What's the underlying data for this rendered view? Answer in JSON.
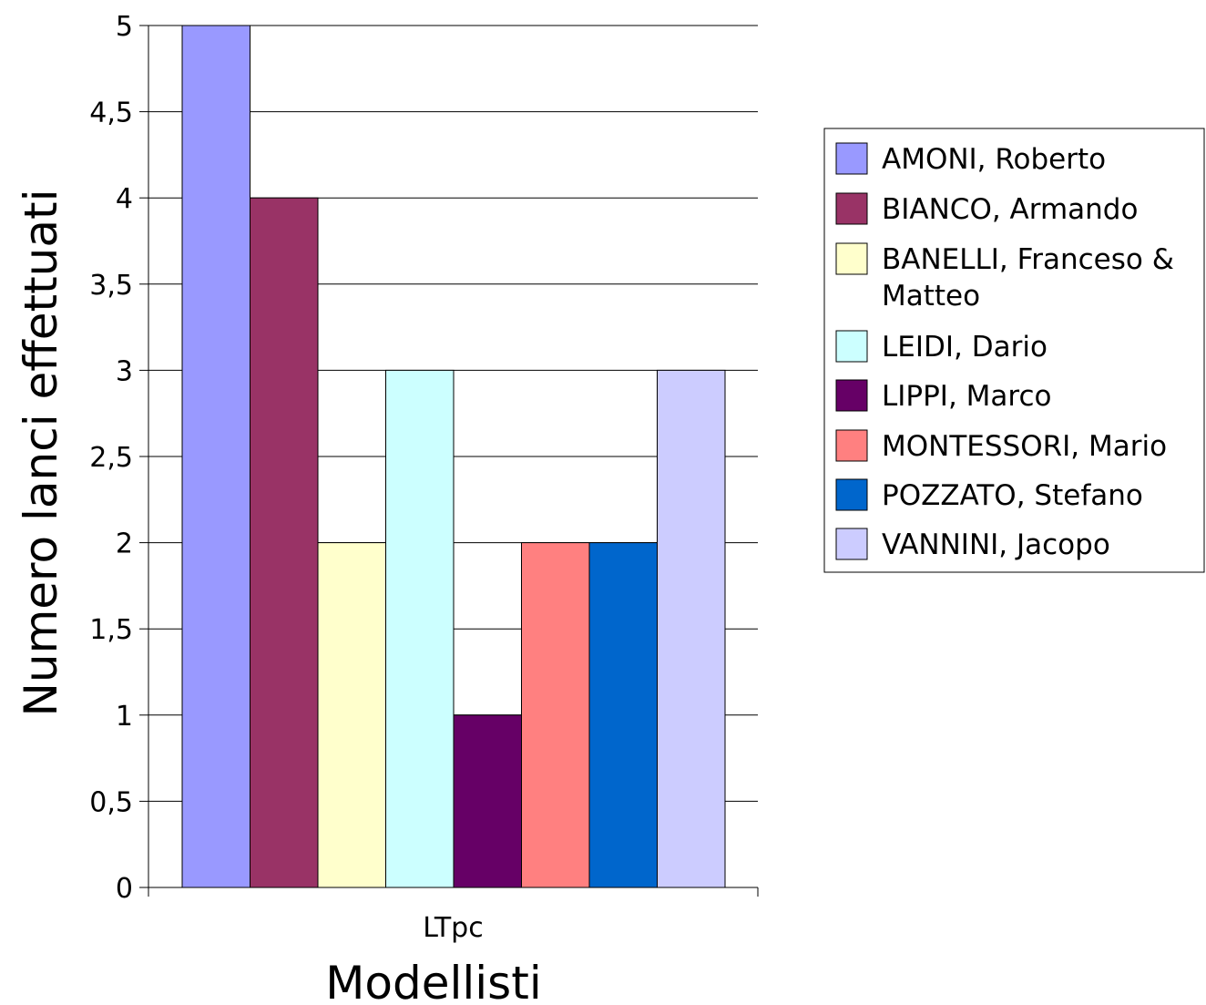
{
  "chart_data": {
    "type": "bar",
    "title": "",
    "xlabel": "Modellisti",
    "ylabel": "Numero lanci effettuati",
    "categories": [
      "LTpc"
    ],
    "ylim": [
      0,
      5
    ],
    "yticks": [
      0,
      0.5,
      1,
      1.5,
      2,
      2.5,
      3,
      3.5,
      4,
      4.5,
      5
    ],
    "ytick_labels": [
      "0",
      "0,5",
      "1",
      "1,5",
      "2",
      "2,5",
      "3",
      "3,5",
      "4",
      "4,5",
      "5"
    ],
    "grid": true,
    "legend_position": "right",
    "series": [
      {
        "name": "AMONI, Roberto",
        "values": [
          5
        ],
        "color": "#9999ff"
      },
      {
        "name": "BIANCO, Armando",
        "values": [
          4
        ],
        "color": "#993366"
      },
      {
        "name": "BANELLI, Franceso & Matteo",
        "values": [
          2
        ],
        "color": "#ffffcc"
      },
      {
        "name": "LEIDI, Dario",
        "values": [
          3
        ],
        "color": "#ccffff"
      },
      {
        "name": "LIPPI, Marco",
        "values": [
          1
        ],
        "color": "#660066"
      },
      {
        "name": "MONTESSORI, Mario",
        "values": [
          2
        ],
        "color": "#ff8080"
      },
      {
        "name": "POZZATO, Stefano",
        "values": [
          2
        ],
        "color": "#0066cc"
      },
      {
        "name": "VANNINI, Jacopo",
        "values": [
          3
        ],
        "color": "#ccccff"
      }
    ]
  }
}
